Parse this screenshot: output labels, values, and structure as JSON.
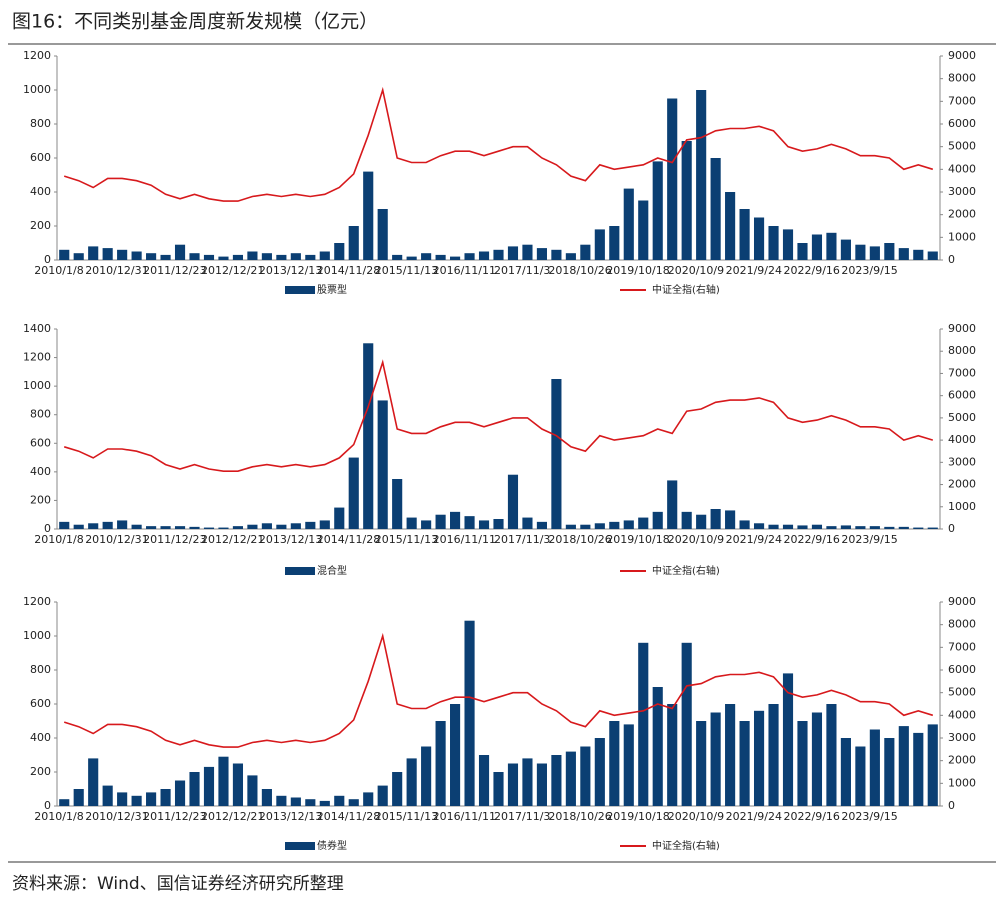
{
  "title": "图16：不同类别基金周度新发规模（亿元）",
  "source": "资料来源：Wind、国信证券经济研究所整理",
  "chart_data": [
    {
      "type": "bar-line",
      "categories": [
        "2010/1/8",
        null,
        null,
        null,
        "2010/12/31",
        null,
        null,
        null,
        "2011/12/23",
        null,
        null,
        null,
        "2012/12/21",
        null,
        null,
        null,
        "2013/12/13",
        null,
        null,
        null,
        "2014/11/28",
        null,
        null,
        null,
        "2015/11/13",
        null,
        null,
        null,
        "2016/11/11",
        null,
        null,
        null,
        "2017/11/3",
        null,
        null,
        null,
        "2018/10/26",
        null,
        null,
        null,
        "2019/10/18",
        null,
        null,
        null,
        "2020/10/9",
        null,
        null,
        null,
        "2021/9/24",
        null,
        null,
        null,
        "2022/9/16",
        null,
        null,
        null,
        "2023/9/15",
        null,
        null,
        null,
        null
      ],
      "series": [
        {
          "name": "股票型",
          "color": "#0b3f73",
          "values": [
            60,
            40,
            80,
            70,
            60,
            50,
            40,
            30,
            90,
            40,
            30,
            20,
            30,
            50,
            40,
            30,
            40,
            30,
            50,
            100,
            200,
            520,
            300,
            30,
            20,
            40,
            30,
            20,
            40,
            50,
            60,
            80,
            90,
            70,
            60,
            40,
            90,
            180,
            200,
            420,
            350,
            580,
            950,
            700,
            1000,
            600,
            400,
            300,
            250,
            200,
            180,
            100,
            150,
            160,
            120,
            90,
            80,
            100,
            70,
            60,
            50
          ]
        },
        {
          "name": "中证全指(右轴)",
          "color": "#d7191c",
          "axis": "y2",
          "values": [
            3700,
            3500,
            3200,
            3600,
            3600,
            3500,
            3300,
            2900,
            2700,
            2900,
            2700,
            2600,
            2600,
            2800,
            2900,
            2800,
            2900,
            2800,
            2900,
            3200,
            3800,
            5500,
            7500,
            4500,
            4300,
            4300,
            4600,
            4800,
            4800,
            4600,
            4800,
            5000,
            5000,
            4500,
            4200,
            3700,
            3500,
            4200,
            4000,
            4100,
            4200,
            4500,
            4300,
            5300,
            5400,
            5700,
            5800,
            5800,
            5900,
            5700,
            5000,
            4800,
            4900,
            5100,
            4900,
            4600,
            4600,
            4500,
            4000,
            4200,
            4000
          ]
        }
      ],
      "ylim": [
        0,
        1200
      ],
      "yticks": [
        0,
        200,
        400,
        600,
        800,
        1000,
        1200
      ],
      "y2lim": [
        0,
        9000
      ],
      "y2ticks": [
        0,
        1000,
        2000,
        3000,
        4000,
        5000,
        6000,
        7000,
        8000,
        9000
      ]
    },
    {
      "type": "bar-line",
      "categories": [
        "2010/1/8",
        null,
        null,
        null,
        "2010/12/31",
        null,
        null,
        null,
        "2011/12/23",
        null,
        null,
        null,
        "2012/12/21",
        null,
        null,
        null,
        "2013/12/13",
        null,
        null,
        null,
        "2014/11/28",
        null,
        null,
        null,
        "2015/11/13",
        null,
        null,
        null,
        "2016/11/11",
        null,
        null,
        null,
        "2017/11/3",
        null,
        null,
        null,
        "2018/10/26",
        null,
        null,
        null,
        "2019/10/18",
        null,
        null,
        null,
        "2020/10/9",
        null,
        null,
        null,
        "2021/9/24",
        null,
        null,
        null,
        "2022/9/16",
        null,
        null,
        null,
        "2023/9/15",
        null,
        null,
        null,
        null
      ],
      "series": [
        {
          "name": "混合型",
          "color": "#0b3f73",
          "values": [
            50,
            30,
            40,
            50,
            60,
            30,
            20,
            20,
            20,
            15,
            10,
            10,
            20,
            30,
            40,
            30,
            40,
            50,
            60,
            150,
            500,
            1300,
            900,
            350,
            80,
            60,
            100,
            120,
            90,
            60,
            70,
            380,
            80,
            50,
            1050,
            30,
            30,
            40,
            50,
            60,
            80,
            120,
            340,
            120,
            100,
            140,
            130,
            60,
            40,
            30,
            30,
            25,
            30,
            20,
            25,
            20,
            20,
            15,
            15,
            10,
            10
          ]
        },
        {
          "name": "中证全指(右轴)",
          "color": "#d7191c",
          "axis": "y2",
          "values": [
            3700,
            3500,
            3200,
            3600,
            3600,
            3500,
            3300,
            2900,
            2700,
            2900,
            2700,
            2600,
            2600,
            2800,
            2900,
            2800,
            2900,
            2800,
            2900,
            3200,
            3800,
            5500,
            7500,
            4500,
            4300,
            4300,
            4600,
            4800,
            4800,
            4600,
            4800,
            5000,
            5000,
            4500,
            4200,
            3700,
            3500,
            4200,
            4000,
            4100,
            4200,
            4500,
            4300,
            5300,
            5400,
            5700,
            5800,
            5800,
            5900,
            5700,
            5000,
            4800,
            4900,
            5100,
            4900,
            4600,
            4600,
            4500,
            4000,
            4200,
            4000
          ]
        }
      ],
      "ylim": [
        0,
        1400
      ],
      "yticks": [
        0,
        200,
        400,
        600,
        800,
        1000,
        1200,
        1400
      ],
      "y2lim": [
        0,
        9000
      ],
      "y2ticks": [
        0,
        1000,
        2000,
        3000,
        4000,
        5000,
        6000,
        7000,
        8000,
        9000
      ]
    },
    {
      "type": "bar-line",
      "categories": [
        "2010/1/8",
        null,
        null,
        null,
        "2010/12/31",
        null,
        null,
        null,
        "2011/12/23",
        null,
        null,
        null,
        "2012/12/21",
        null,
        null,
        null,
        "2013/12/13",
        null,
        null,
        null,
        "2014/11/28",
        null,
        null,
        null,
        "2015/11/13",
        null,
        null,
        null,
        "2016/11/11",
        null,
        null,
        null,
        "2017/11/3",
        null,
        null,
        null,
        "2018/10/26",
        null,
        null,
        null,
        "2019/10/18",
        null,
        null,
        null,
        "2020/10/9",
        null,
        null,
        null,
        "2021/9/24",
        null,
        null,
        null,
        "2022/9/16",
        null,
        null,
        null,
        "2023/9/15",
        null,
        null,
        null,
        null
      ],
      "series": [
        {
          "name": "债券型",
          "color": "#0b3f73",
          "values": [
            40,
            100,
            280,
            120,
            80,
            60,
            80,
            100,
            150,
            200,
            230,
            290,
            250,
            180,
            100,
            60,
            50,
            40,
            30,
            60,
            40,
            80,
            120,
            200,
            280,
            350,
            500,
            600,
            1090,
            300,
            200,
            250,
            280,
            250,
            300,
            320,
            350,
            400,
            500,
            480,
            960,
            700,
            600,
            960,
            500,
            550,
            600,
            500,
            560,
            600,
            780,
            500,
            550,
            600,
            400,
            350,
            450,
            400,
            470,
            430,
            480
          ]
        },
        {
          "name": "中证全指(右轴)",
          "color": "#d7191c",
          "axis": "y2",
          "values": [
            3700,
            3500,
            3200,
            3600,
            3600,
            3500,
            3300,
            2900,
            2700,
            2900,
            2700,
            2600,
            2600,
            2800,
            2900,
            2800,
            2900,
            2800,
            2900,
            3200,
            3800,
            5500,
            7500,
            4500,
            4300,
            4300,
            4600,
            4800,
            4800,
            4600,
            4800,
            5000,
            5000,
            4500,
            4200,
            3700,
            3500,
            4200,
            4000,
            4100,
            4200,
            4500,
            4300,
            5300,
            5400,
            5700,
            5800,
            5800,
            5900,
            5700,
            5000,
            4800,
            4900,
            5100,
            4900,
            4600,
            4600,
            4500,
            4000,
            4200,
            4000
          ]
        }
      ],
      "ylim": [
        0,
        1200
      ],
      "yticks": [
        0,
        200,
        400,
        600,
        800,
        1000,
        1200
      ],
      "y2lim": [
        0,
        9000
      ],
      "y2ticks": [
        0,
        1000,
        2000,
        3000,
        4000,
        5000,
        6000,
        7000,
        8000,
        9000
      ]
    }
  ]
}
